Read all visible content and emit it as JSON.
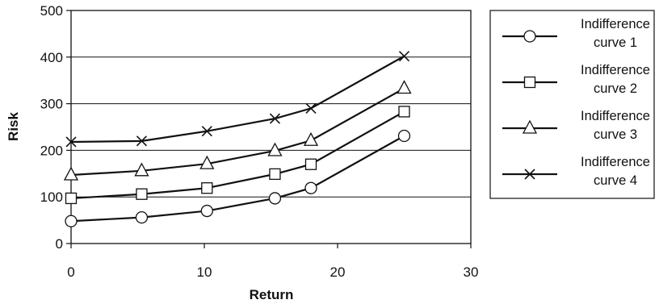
{
  "chart_data": {
    "type": "line",
    "xlabel": "Return",
    "ylabel": "Risk",
    "xlim": [
      0,
      30
    ],
    "ylim": [
      0,
      500
    ],
    "xticks": [
      0,
      10,
      20,
      30
    ],
    "yticks": [
      0,
      100,
      200,
      300,
      400,
      500
    ],
    "grid": "horizontal",
    "legend_position": "right",
    "series": [
      {
        "name": "Indifference curve 1",
        "legend_lines": [
          "Indifference",
          "curve 1"
        ],
        "marker": "circle",
        "x": [
          0,
          5.3,
          10.2,
          15.3,
          18,
          25
        ],
        "y": [
          48,
          56,
          70,
          97,
          119,
          231
        ]
      },
      {
        "name": "Indifference curve 2",
        "legend_lines": [
          "Indifference",
          "curve 2"
        ],
        "marker": "square",
        "x": [
          0,
          5.3,
          10.2,
          15.3,
          18,
          25
        ],
        "y": [
          97,
          106,
          119,
          149,
          170,
          283
        ]
      },
      {
        "name": "Indifference curve 3",
        "legend_lines": [
          "Indifference",
          "curve 3"
        ],
        "marker": "triangle",
        "x": [
          0,
          5.3,
          10.2,
          15.3,
          18,
          25
        ],
        "y": [
          147,
          156,
          171,
          199,
          221,
          333
        ]
      },
      {
        "name": "Indifference curve 4",
        "legend_lines": [
          "Indifference",
          "curve 4"
        ],
        "marker": "x",
        "x": [
          0,
          5.3,
          10.2,
          15.3,
          18,
          25
        ],
        "y": [
          218,
          220,
          241,
          268,
          290,
          402
        ]
      }
    ]
  }
}
